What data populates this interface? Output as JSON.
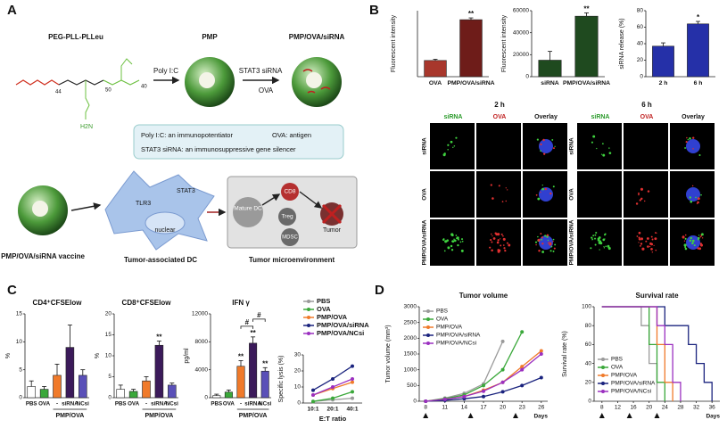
{
  "panels": {
    "a": "A",
    "b": "B",
    "c": "C",
    "d": "D"
  },
  "scheme": {
    "polymer": "PEG-PLL-PLLeu",
    "pmp": "PMP",
    "complex": "PMP/OVA/siRNA",
    "n_peg": "44",
    "n_pll": "50",
    "n_pllru": "40",
    "amine": "H2N",
    "step1": "Poly I:C",
    "step2": "STAT3 siRNA",
    "step2b": "OVA",
    "note1": "Poly I:C: an immunopotentiator",
    "note2": "OVA: antigen",
    "note3": "STAT3 siRNA: an immunosuppressive gene silencer",
    "tlr": "TLR3",
    "stat": "STAT3",
    "nucleus": "nuclear",
    "mature": "Mature DC",
    "cd8": "CD8",
    "treg": "Treg",
    "mdsc": "MDSC",
    "tumor": "Tumor",
    "vaccine": "PMP/OVA/siRNA vaccine",
    "dc": "Tumor-associated DC",
    "micro": "Tumor microenvironment"
  },
  "microscopy": {
    "times": [
      "2 h",
      "6 h"
    ],
    "channels": [
      "siRNA",
      "OVA",
      "Overlay"
    ],
    "rows": [
      "siRNA",
      "OVA",
      "PMP/OVA/siRNA"
    ]
  },
  "chart_data": [
    {
      "type": "bar",
      "ylabel": "Fluorescent intensity",
      "categories": [
        "OVA",
        "PMP/OVA/siRNA"
      ],
      "values": [
        2700,
        9500
      ],
      "errors": [
        200,
        300
      ],
      "colors": [
        "#a8372c",
        "#6e1c19"
      ],
      "ylim": [
        0,
        11000
      ],
      "annotations": [
        {
          "category": "PMP/OVA/siRNA",
          "text": "**"
        }
      ]
    },
    {
      "type": "bar",
      "ylabel": "Fluorescent intensity",
      "categories": [
        "siRNA",
        "PMP/OVA/siRNA"
      ],
      "values": [
        15000,
        55000
      ],
      "errors": [
        8000,
        3000
      ],
      "colors": [
        "#1f4a1f",
        "#1f4a1f"
      ],
      "ylim": [
        0,
        60000
      ],
      "yticks": [
        0,
        20000,
        40000,
        60000
      ],
      "annotations": [
        {
          "category": "PMP/OVA/siRNA",
          "text": "**"
        }
      ]
    },
    {
      "type": "bar",
      "ylabel": "siRNA release (%)",
      "categories": [
        "2 h",
        "6 h"
      ],
      "values": [
        37,
        64
      ],
      "errors": [
        4,
        3
      ],
      "colors": [
        "#2530a8",
        "#2530a8"
      ],
      "ylim": [
        0,
        80
      ],
      "yticks": [
        0,
        20,
        40,
        60,
        80
      ],
      "annotations": [
        {
          "category": "6 h",
          "text": "*"
        }
      ]
    },
    {
      "type": "bar",
      "title": "CD4⁺CFSElow",
      "ylabel": "%",
      "categories": [
        "PBS",
        "OVA",
        "-",
        "siRNA",
        "NCsi"
      ],
      "values": [
        2,
        1.5,
        4,
        9,
        4
      ],
      "errors": [
        1,
        0.5,
        2,
        4,
        1
      ],
      "colors": [
        "#ffffff",
        "#3aa83a",
        "#f07a2a",
        "#3b1a5a",
        "#5a50b8"
      ],
      "ylim": [
        0,
        15
      ],
      "yticks": [
        0,
        5,
        10,
        15
      ],
      "group": {
        "label": "PMP/OVA",
        "categories": [
          "-",
          "siRNA",
          "NCsi"
        ]
      }
    },
    {
      "type": "bar",
      "title": "CD8⁺CFSElow",
      "ylabel": "%",
      "categories": [
        "PBS",
        "OVA",
        "-",
        "siRNA",
        "NCsi"
      ],
      "values": [
        2,
        1.5,
        4,
        12.5,
        3
      ],
      "errors": [
        1,
        0.5,
        1,
        1,
        0.5
      ],
      "colors": [
        "#ffffff",
        "#3aa83a",
        "#f07a2a",
        "#3b1a5a",
        "#5a50b8"
      ],
      "ylim": [
        0,
        20
      ],
      "yticks": [
        0,
        5,
        10,
        15,
        20
      ],
      "group": {
        "label": "PMP/OVA",
        "categories": [
          "-",
          "siRNA",
          "NCsi"
        ]
      },
      "annotations": [
        {
          "category": "siRNA",
          "text": "**"
        }
      ]
    },
    {
      "type": "bar",
      "title": "IFN γ",
      "ylabel": "pg/ml",
      "categories": [
        "PBS",
        "OVA",
        "-",
        "siRNA",
        "NCsi"
      ],
      "values": [
        300,
        800,
        4500,
        7800,
        3800
      ],
      "errors": [
        200,
        300,
        800,
        900,
        500
      ],
      "colors": [
        "#ffffff",
        "#3aa83a",
        "#f07a2a",
        "#3b1a5a",
        "#5a50b8"
      ],
      "ylim": [
        0,
        12000
      ],
      "yticks": [
        0,
        4000,
        8000,
        12000
      ],
      "group": {
        "label": "PMP/OVA",
        "categories": [
          "-",
          "siRNA",
          "NCsi"
        ]
      },
      "annotations": [
        {
          "category": "-",
          "text": "**"
        },
        {
          "category": "siRNA",
          "text": "**"
        },
        {
          "category": "NCsi",
          "text": "**"
        }
      ],
      "brackets": [
        {
          "from": "-",
          "to": "siRNA",
          "text": "#"
        },
        {
          "from": "siRNA",
          "to": "NCsi",
          "text": "#"
        }
      ]
    },
    {
      "type": "line",
      "xlabel": "E:T ratio",
      "ylabel": "Specific lysis (%)",
      "categories": [
        "10:1",
        "20:1",
        "40:1"
      ],
      "ylim": [
        0,
        30
      ],
      "yticks": [
        0,
        10,
        20,
        30
      ],
      "legend": "top",
      "series": [
        {
          "name": "PBS",
          "color": "#9a9a9a",
          "values": [
            1,
            2,
            3
          ]
        },
        {
          "name": "OVA",
          "color": "#3aa83a",
          "values": [
            1,
            3,
            7
          ]
        },
        {
          "name": "PMP/OVA",
          "color": "#f07a2a",
          "values": [
            5,
            9,
            13
          ]
        },
        {
          "name": "PMP/OVA/siRNA",
          "color": "#1a237e",
          "values": [
            8,
            15,
            23
          ]
        },
        {
          "name": "PMP/OVA/NCsi",
          "color": "#9b30c0",
          "values": [
            5,
            10,
            15
          ]
        }
      ]
    },
    {
      "type": "line",
      "title": "Tumor volume",
      "xlabel": "Days",
      "ylabel": "Tumor volume (mm³)",
      "x": [
        8,
        11,
        14,
        17,
        20,
        23,
        26
      ],
      "xlim": [
        7,
        27
      ],
      "xticks": [
        8,
        11,
        14,
        17,
        20,
        23,
        26
      ],
      "ylim": [
        0,
        3000
      ],
      "yticks": [
        0,
        500,
        1000,
        1500,
        2000,
        2500,
        3000
      ],
      "legend": "top-left",
      "markers_x": [
        8,
        15,
        22
      ],
      "series": [
        {
          "name": "PBS",
          "color": "#9a9a9a",
          "values": [
            0,
            100,
            250,
            550,
            1900,
            null,
            null
          ]
        },
        {
          "name": "OVA",
          "color": "#3aa83a",
          "values": [
            0,
            80,
            200,
            500,
            1000,
            2200,
            null
          ]
        },
        {
          "name": "PMP/OVA",
          "color": "#f07a2a",
          "values": [
            0,
            60,
            150,
            350,
            600,
            1100,
            1600
          ]
        },
        {
          "name": "PMP/OVA/siRNA",
          "color": "#1a237e",
          "values": [
            0,
            30,
            80,
            150,
            300,
            500,
            750
          ]
        },
        {
          "name": "PMP/OVA/NCsi",
          "color": "#9b30c0",
          "values": [
            0,
            60,
            150,
            320,
            600,
            1000,
            1500
          ]
        }
      ]
    },
    {
      "type": "step",
      "title": "Survival rate",
      "xlabel": "Days",
      "ylabel": "Survival rate (%)",
      "x": [
        8,
        10,
        12,
        14,
        16,
        18,
        20,
        22,
        24,
        26,
        28,
        30,
        32,
        34,
        36
      ],
      "xlim": [
        6,
        38
      ],
      "xticks": [
        8,
        12,
        16,
        20,
        24,
        28,
        32,
        36
      ],
      "ylim": [
        0,
        100
      ],
      "yticks": [
        0,
        20,
        40,
        60,
        80,
        100
      ],
      "legend": "bottom-left",
      "markers_x": [
        8,
        15,
        22
      ],
      "series": [
        {
          "name": "PBS",
          "color": "#9a9a9a",
          "values": [
            100,
            100,
            100,
            100,
            100,
            80,
            40,
            0,
            null,
            null,
            null,
            null,
            null,
            null,
            null
          ]
        },
        {
          "name": "OVA",
          "color": "#3aa83a",
          "values": [
            100,
            100,
            100,
            100,
            100,
            100,
            60,
            20,
            0,
            null,
            null,
            null,
            null,
            null,
            null
          ]
        },
        {
          "name": "PMP/OVA",
          "color": "#f07a2a",
          "values": [
            100,
            100,
            100,
            100,
            100,
            100,
            100,
            60,
            20,
            0,
            null,
            null,
            null,
            null,
            null
          ]
        },
        {
          "name": "PMP/OVA/siRNA",
          "color": "#1a237e",
          "values": [
            100,
            100,
            100,
            100,
            100,
            100,
            100,
            100,
            80,
            80,
            80,
            60,
            40,
            20,
            0
          ]
        },
        {
          "name": "PMP/OVA/NCsi",
          "color": "#9b30c0",
          "values": [
            100,
            100,
            100,
            100,
            100,
            100,
            100,
            80,
            60,
            20,
            0,
            null,
            null,
            null,
            null
          ]
        }
      ]
    }
  ]
}
